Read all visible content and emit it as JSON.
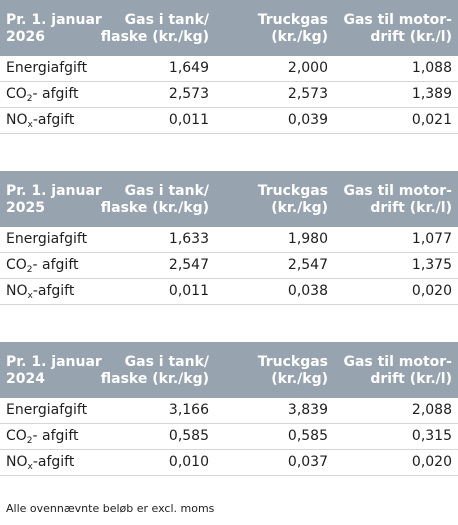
{
  "tables": [
    {
      "header": {
        "label": "Pr. 1. januar\n2026",
        "col1": "Gas i tank/\nflaske (kr./kg)",
        "col2": "Truckgas\n(kr./kg)",
        "col3": "Gas til motor-\ndrift (kr./l)"
      },
      "rows": [
        {
          "label": "Energiafgift",
          "v1": "1,649",
          "v2": "2,000",
          "v3": "1,088"
        },
        {
          "label_main": "CO",
          "label_sub": "2",
          "label_tail": "- afgift",
          "v1": "2,573",
          "v2": "2,573",
          "v3": "1,389"
        },
        {
          "label_main": "NO",
          "label_sub": "x",
          "label_tail": "-afgift",
          "v1": "0,011",
          "v2": "0,039",
          "v3": "0,021"
        }
      ]
    },
    {
      "header": {
        "label": "Pr. 1. januar\n2025",
        "col1": "Gas i tank/\nflaske (kr./kg)",
        "col2": "Truckgas\n(kr./kg)",
        "col3": "Gas til motor-\ndrift (kr./l)"
      },
      "rows": [
        {
          "label": "Energiafgift",
          "v1": "1,633",
          "v2": "1,980",
          "v3": "1,077"
        },
        {
          "label_main": "CO",
          "label_sub": "2",
          "label_tail": "- afgift",
          "v1": "2,547",
          "v2": "2,547",
          "v3": "1,375"
        },
        {
          "label_main": "NO",
          "label_sub": "x",
          "label_tail": "-afgift",
          "v1": "0,011",
          "v2": "0,038",
          "v3": "0,020"
        }
      ]
    },
    {
      "header": {
        "label": "Pr. 1. januar\n2024",
        "col1": "Gas i tank/\nflaske (kr./kg)",
        "col2": "Truckgas\n(kr./kg)",
        "col3": "Gas til motor-\ndrift (kr./l)"
      },
      "rows": [
        {
          "label": "Energiafgift",
          "v1": "3,166",
          "v2": "3,839",
          "v3": "2,088"
        },
        {
          "label_main": "CO",
          "label_sub": "2",
          "label_tail": "- afgift",
          "v1": "0,585",
          "v2": "0,585",
          "v3": "0,315"
        },
        {
          "label_main": "NO",
          "label_sub": "x",
          "label_tail": "-afgift",
          "v1": "0,010",
          "v2": "0,037",
          "v3": "0,020"
        }
      ]
    }
  ],
  "footnote": "Alle ovennævnte beløb er excl. moms",
  "colors": {
    "header_bg": "#97a3ae",
    "header_text": "#ffffff",
    "row_divider": "#d6d6d6"
  }
}
